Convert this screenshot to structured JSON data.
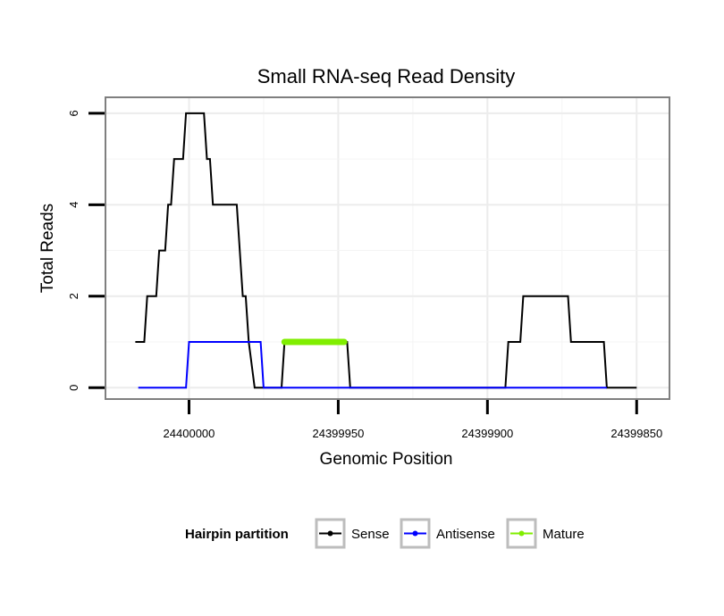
{
  "chart_data": {
    "type": "line",
    "title": "Small RNA-seq Read Density",
    "xlabel": "Genomic Position",
    "ylabel": "Total Reads",
    "x_reversed": true,
    "xlim": [
      24400028,
      24399839
    ],
    "ylim": [
      -0.25,
      6.35
    ],
    "x_ticks": [
      24400000,
      24399950,
      24399900,
      24399850
    ],
    "x_tick_labels": [
      "24400000",
      "24399950",
      "24399900",
      "24399850"
    ],
    "y_ticks": [
      0,
      2,
      4,
      6
    ],
    "y_tick_labels": [
      "0",
      "2",
      "4",
      "6"
    ],
    "grid": true,
    "legend": {
      "title": "Hairpin partition",
      "position": "bottom",
      "entries": [
        "Sense",
        "Antisense",
        "Mature"
      ]
    },
    "series": [
      {
        "name": "Sense",
        "color": "#000000",
        "points": [
          [
            24400018,
            1
          ],
          [
            24400015,
            1
          ],
          [
            24400014,
            2
          ],
          [
            24400011,
            2
          ],
          [
            24400010,
            3
          ],
          [
            24400008,
            3
          ],
          [
            24400007,
            4
          ],
          [
            24400006,
            4
          ],
          [
            24400005,
            5
          ],
          [
            24400002,
            5
          ],
          [
            24400001,
            6
          ],
          [
            24399995,
            6
          ],
          [
            24399994,
            5
          ],
          [
            24399993,
            5
          ],
          [
            24399992,
            4
          ],
          [
            24399984,
            4
          ],
          [
            24399982,
            2
          ],
          [
            24399981,
            2
          ],
          [
            24399980,
            1
          ],
          [
            24399978,
            0
          ],
          [
            24399969,
            0
          ],
          [
            24399968,
            1
          ],
          [
            24399947,
            1
          ],
          [
            24399946,
            0
          ],
          [
            24399894,
            0
          ],
          [
            24399893,
            1
          ],
          [
            24399889,
            1
          ],
          [
            24399888,
            2
          ],
          [
            24399873,
            2
          ],
          [
            24399872,
            1
          ],
          [
            24399861,
            1
          ],
          [
            24399860,
            0
          ],
          [
            24399850,
            0
          ]
        ]
      },
      {
        "name": "Antisense",
        "color": "#0000ff",
        "points": [
          [
            24400017,
            0
          ],
          [
            24400001,
            0
          ],
          [
            24400000,
            1
          ],
          [
            24399976,
            1
          ],
          [
            24399975,
            0
          ],
          [
            24399860,
            0
          ]
        ]
      },
      {
        "name": "Mature",
        "color": "#80ee00",
        "points": [
          [
            24399968,
            1
          ],
          [
            24399948,
            1
          ]
        ]
      }
    ]
  }
}
